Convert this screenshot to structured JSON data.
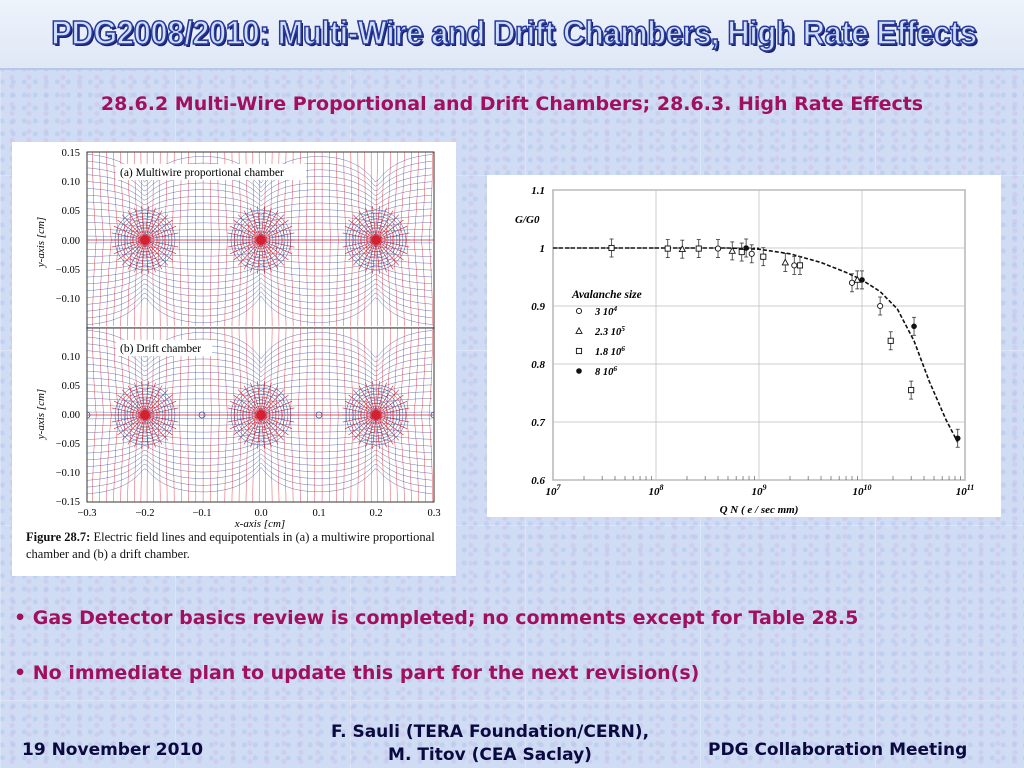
{
  "slide": {
    "title": "PDG2008/2010: Multi-Wire and Drift Chambers, High Rate Effects",
    "subtitle": "28.6.2 Multi-Wire Proportional and Drift Chambers; 28.6.3. High Rate Effects",
    "bullets": [
      "• Gas Detector basics review is completed; no comments except for Table 28.5",
      "• No immediate plan to update this part for the next revision(s)"
    ],
    "footer": {
      "date": "19 November 2010",
      "authors_line1": "F. Sauli (TERA Foundation/CERN),",
      "authors_line2": "M. Titov (CEA Saclay)",
      "meeting": "PDG Collaboration Meeting"
    },
    "colors": {
      "title_fill": "#cfe0ff",
      "title_stroke": "#2a3a9a",
      "accent": "#a0105e",
      "field_lines": "#d42030",
      "equipotentials": "#3050a0"
    }
  },
  "figure_left": {
    "panel_a_label": "(a) Multiwire proportional chamber",
    "panel_b_label": "(b) Drift chamber",
    "y_axis_label": "y-axis [cm]",
    "x_axis_label": "x-axis [cm]",
    "y_ticks_a": [
      "0.15",
      "0.10",
      "0.05",
      "0.00",
      "−0.05",
      "−0.10"
    ],
    "y_ticks_b": [
      "0.10",
      "0.05",
      "0.00",
      "−0.05",
      "−0.10",
      "−0.15"
    ],
    "x_ticks": [
      "−0.3",
      "−0.2",
      "−0.1",
      "0.0",
      "0.1",
      "0.2",
      "0.3"
    ],
    "caption_bold": "Figure 28.7:",
    "caption_text": " Electric field lines and equipotentials in (a) a multiwire proportional chamber and (b) a drift chamber."
  },
  "chart_data": {
    "type": "scatter",
    "title": "",
    "xlabel": "Q N ( e / sec mm)",
    "ylabel": "G/G0",
    "xscale": "log",
    "xlim": [
      10000000,
      100000000000
    ],
    "ylim": [
      0.6,
      1.1
    ],
    "x_tick_labels": [
      "10^7",
      "10^8",
      "10^9",
      "10^10",
      "10^11"
    ],
    "y_tick_labels": [
      "0.6",
      "0.7",
      "0.8",
      "0.9",
      "1",
      "1.1"
    ],
    "legend_title": "Avalanche size",
    "legend_position": "center-left",
    "series": [
      {
        "name": "3 10^4",
        "marker": "open-circle",
        "x": [
          400000000,
          850000000,
          2200000000,
          8000000000,
          15000000000
        ],
        "y": [
          0.999,
          0.99,
          0.97,
          0.94,
          0.9
        ]
      },
      {
        "name": "2.3 10^5",
        "marker": "open-triangle",
        "x": [
          180000000,
          550000000,
          1800000000,
          9000000000
        ],
        "y": [
          0.998,
          0.995,
          0.975,
          0.945
        ]
      },
      {
        "name": "1.8 10^6",
        "marker": "open-square",
        "x": [
          37000000,
          130000000,
          260000000,
          680000000,
          1100000000,
          2500000000,
          19000000000,
          30000000000
        ],
        "y": [
          1.0,
          0.999,
          0.999,
          0.993,
          0.985,
          0.97,
          0.84,
          0.755
        ]
      },
      {
        "name": "8 10^6",
        "marker": "filled-circle",
        "x": [
          750000000,
          10000000000,
          32000000000,
          85000000000
        ],
        "y": [
          1.0,
          0.945,
          0.865,
          0.672
        ]
      }
    ],
    "fit_curve": {
      "style": "dashed",
      "x": [
        10000000,
        100000000,
        500000000,
        1000000000,
        2000000000,
        4000000000,
        7000000000,
        10000000000,
        15000000000,
        22000000000,
        32000000000,
        45000000000,
        65000000000,
        85000000000
      ],
      "y": [
        1.0,
        1.0,
        1.0,
        0.998,
        0.99,
        0.975,
        0.958,
        0.945,
        0.925,
        0.895,
        0.84,
        0.77,
        0.705,
        0.665
      ]
    }
  }
}
